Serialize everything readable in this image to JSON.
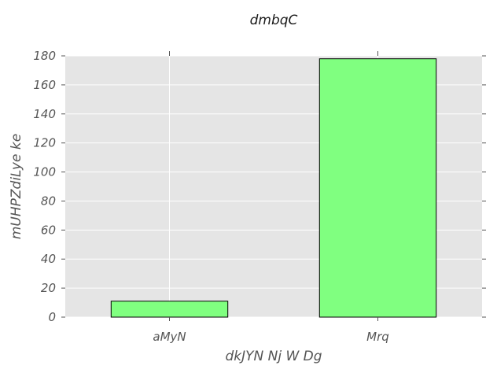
{
  "chart_data": {
    "type": "bar",
    "title": "dmbqC",
    "xlabel": "dkJYN Nj W Dg",
    "ylabel": "mUHPZdiLye ke",
    "categories": [
      "aMyN",
      "Mrq"
    ],
    "values": [
      11,
      178
    ],
    "ylim": [
      0,
      180
    ],
    "yticks": [
      0,
      20,
      40,
      60,
      80,
      100,
      120,
      140,
      160,
      180
    ],
    "grid": true,
    "legend": "none",
    "colors": {
      "bar_fill": "#80ff80",
      "bar_edge": "#000000",
      "plot_bg": "#e5e5e5",
      "grid": "#ffffff",
      "tick": "#555555"
    }
  }
}
